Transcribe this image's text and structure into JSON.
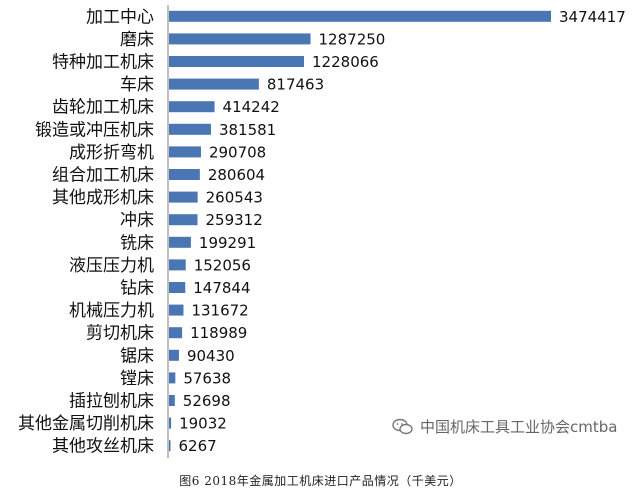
{
  "chart_data": {
    "type": "bar",
    "orientation": "horizontal",
    "categories": [
      "加工中心",
      "磨床",
      "特种加工机床",
      "车床",
      "齿轮加工机床",
      "锻造或冲压机床",
      "成形折弯机",
      "组合加工机床",
      "其他成形机床",
      "冲床",
      "铣床",
      "液压压力机",
      "钻床",
      "机械压力机",
      "剪切机床",
      "锯床",
      "镗床",
      "插拉刨机床",
      "其他金属切削机床",
      "其他攻丝机床"
    ],
    "values": [
      3474417,
      1287250,
      1228066,
      817463,
      414242,
      381581,
      290708,
      280604,
      260543,
      259312,
      199291,
      152056,
      147844,
      131672,
      118989,
      90430,
      57638,
      52698,
      19032,
      6267
    ],
    "value_labels": [
      "3474417",
      "1287250",
      "1228066",
      "817463",
      "414242",
      "381581",
      "290708",
      "280604",
      "260543",
      "259312",
      "199291",
      "152056",
      "147844",
      "131672",
      "118989",
      "90430",
      "57638",
      "52698",
      "19032",
      "6267"
    ],
    "grid": false,
    "bar_color": "#4a76b4"
  },
  "caption": "图6 2018年金属加工机床进口产品情况（千美元）",
  "watermark": "中国机床工具工业协会cmtba"
}
